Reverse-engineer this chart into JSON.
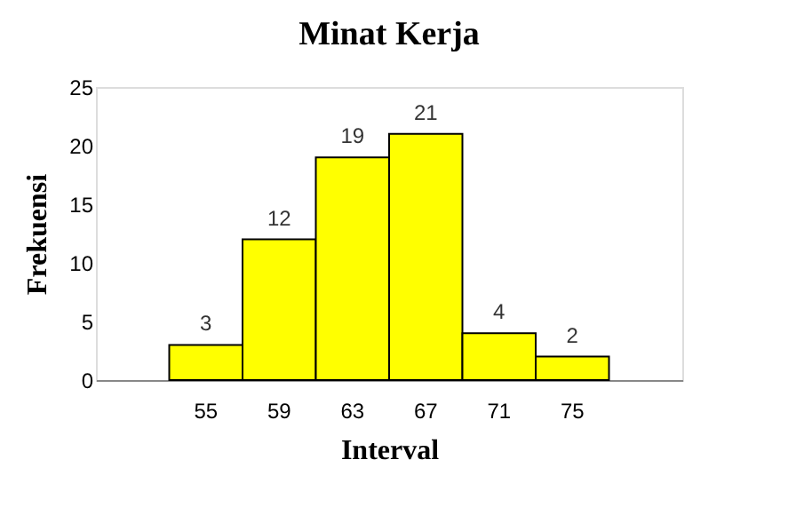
{
  "chart_data": {
    "type": "bar",
    "title": "Minat Kerja",
    "xlabel": "Interval",
    "ylabel": "Frekuensi",
    "categories": [
      "55",
      "59",
      "63",
      "67",
      "71",
      "75"
    ],
    "values": [
      3,
      12,
      19,
      21,
      4,
      2
    ],
    "color": "#ffff00",
    "ylim": [
      0,
      25
    ],
    "yticks": [
      0,
      5,
      10,
      15,
      20,
      25
    ],
    "grid": false,
    "data_labels": true
  }
}
